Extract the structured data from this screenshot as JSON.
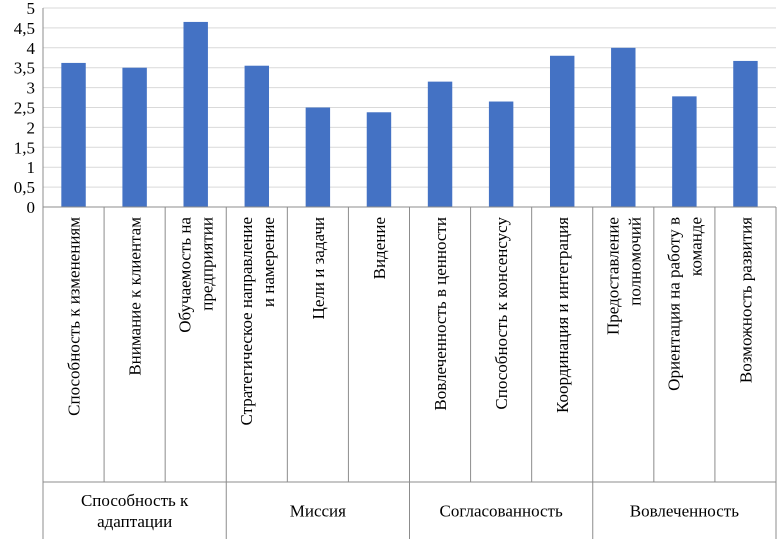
{
  "chart_data": {
    "type": "bar",
    "title": "",
    "xlabel": "",
    "ylabel": "",
    "ylim": [
      0,
      5
    ],
    "yticks": [
      0,
      0.5,
      1,
      1.5,
      2,
      2.5,
      3,
      3.5,
      4,
      4.5,
      5
    ],
    "ytick_labels": [
      "0",
      "0,5",
      "1",
      "1,5",
      "2",
      "2,5",
      "3",
      "3,5",
      "4",
      "4,5",
      "5"
    ],
    "grid": true,
    "bar_color": "#4472c4",
    "categories": [
      {
        "lines": [
          "Способность к изменениям"
        ]
      },
      {
        "lines": [
          "Внимание к клиентам"
        ]
      },
      {
        "lines": [
          "Обучаемость на",
          "предприятии"
        ]
      },
      {
        "lines": [
          "Стратегическое направление",
          "и намерение"
        ]
      },
      {
        "lines": [
          "Цели и задачи"
        ]
      },
      {
        "lines": [
          "Видение"
        ]
      },
      {
        "lines": [
          "Вовлеченность в ценности"
        ]
      },
      {
        "lines": [
          "Способность к консенсусу"
        ]
      },
      {
        "lines": [
          "Координация и интеграция"
        ]
      },
      {
        "lines": [
          "Предоставление",
          "полномочий"
        ]
      },
      {
        "lines": [
          "Ориентация на работу в",
          "команде"
        ]
      },
      {
        "lines": [
          "Возможность развития"
        ]
      }
    ],
    "values": [
      3.62,
      3.5,
      4.65,
      3.55,
      2.5,
      2.38,
      3.15,
      2.65,
      3.8,
      4.0,
      2.78,
      3.67
    ],
    "groups": [
      {
        "lines": [
          "Способность к",
          "адаптации"
        ],
        "count": 3
      },
      {
        "lines": [
          "Миссия"
        ],
        "count": 3
      },
      {
        "lines": [
          "Согласованность"
        ],
        "count": 3
      },
      {
        "lines": [
          "Вовлеченность"
        ],
        "count": 3
      }
    ]
  }
}
